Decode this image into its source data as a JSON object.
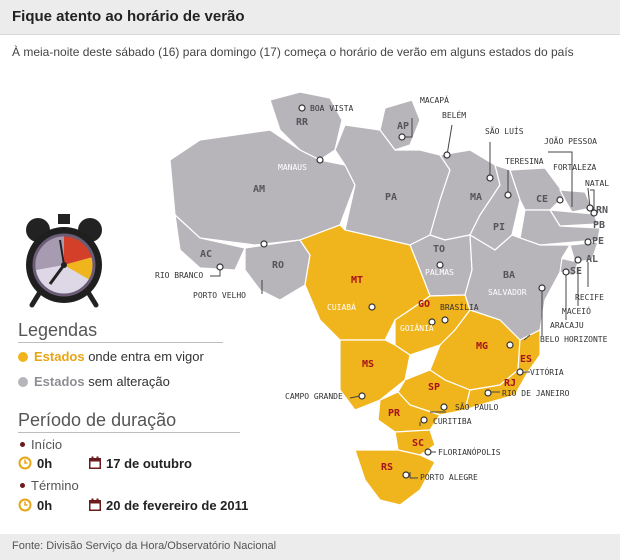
{
  "header": {
    "title": "Fique atento ao horário de verão"
  },
  "subtitle": "À meia-noite deste sábado (16) para domingo (17) começa o horário de verão em alguns estados do país",
  "colors": {
    "dst": "#f0b41d",
    "no_change": "#b7b5ba",
    "state_label_dst": "#a6121b",
    "state_label_other": "#55555a"
  },
  "map": {
    "states_dst": [
      "MT",
      "GO",
      "MS",
      "MG",
      "ES",
      "SP",
      "RJ",
      "PR",
      "SC",
      "RS"
    ],
    "states_no_change": [
      "RR",
      "AP",
      "AM",
      "PA",
      "MA",
      "CE",
      "RN",
      "PB",
      "PE",
      "AL",
      "SE",
      "PI",
      "TO",
      "BA",
      "AC",
      "RO"
    ],
    "cities_dark": [
      "BOA VISTA",
      "MACAPÁ",
      "BELÉM",
      "SÃO LUÍS",
      "JOÃO PESSOA",
      "TERESINA",
      "FORTALEZA",
      "NATAL",
      "RIO BRANCO",
      "PORTO VELHO",
      "RECIFE",
      "MACEIÓ",
      "ARACAJU",
      "BELO HORIZONTE",
      "VITÓRIA",
      "RIO DE JANEIRO",
      "CAMPO GRANDE",
      "SÃO PAULO",
      "CURITIBA",
      "FLORIANÓPOLIS",
      "PORTO ALEGRE"
    ],
    "cities_light": [
      "MANAUS",
      "PALMAS",
      "SALVADOR",
      "CUIABÁ",
      "GOIÂNIA"
    ],
    "city_dark_brasilia": "BRASÍLIA"
  },
  "legend": {
    "title": "Legendas",
    "dst_strong": "Estados",
    "dst_text": "onde entra em vigor",
    "other_strong": "Estados",
    "other_text": "sem alteração"
  },
  "period": {
    "title": "Período de duração",
    "start_label": "Início",
    "start_time": "0h",
    "start_date": "17 de outubro",
    "end_label": "Término",
    "end_time": "0h",
    "end_date": "20 de fevereiro de 2011"
  },
  "source": "Fonte: Divisão Serviço da Hora/Observatório Nacional"
}
